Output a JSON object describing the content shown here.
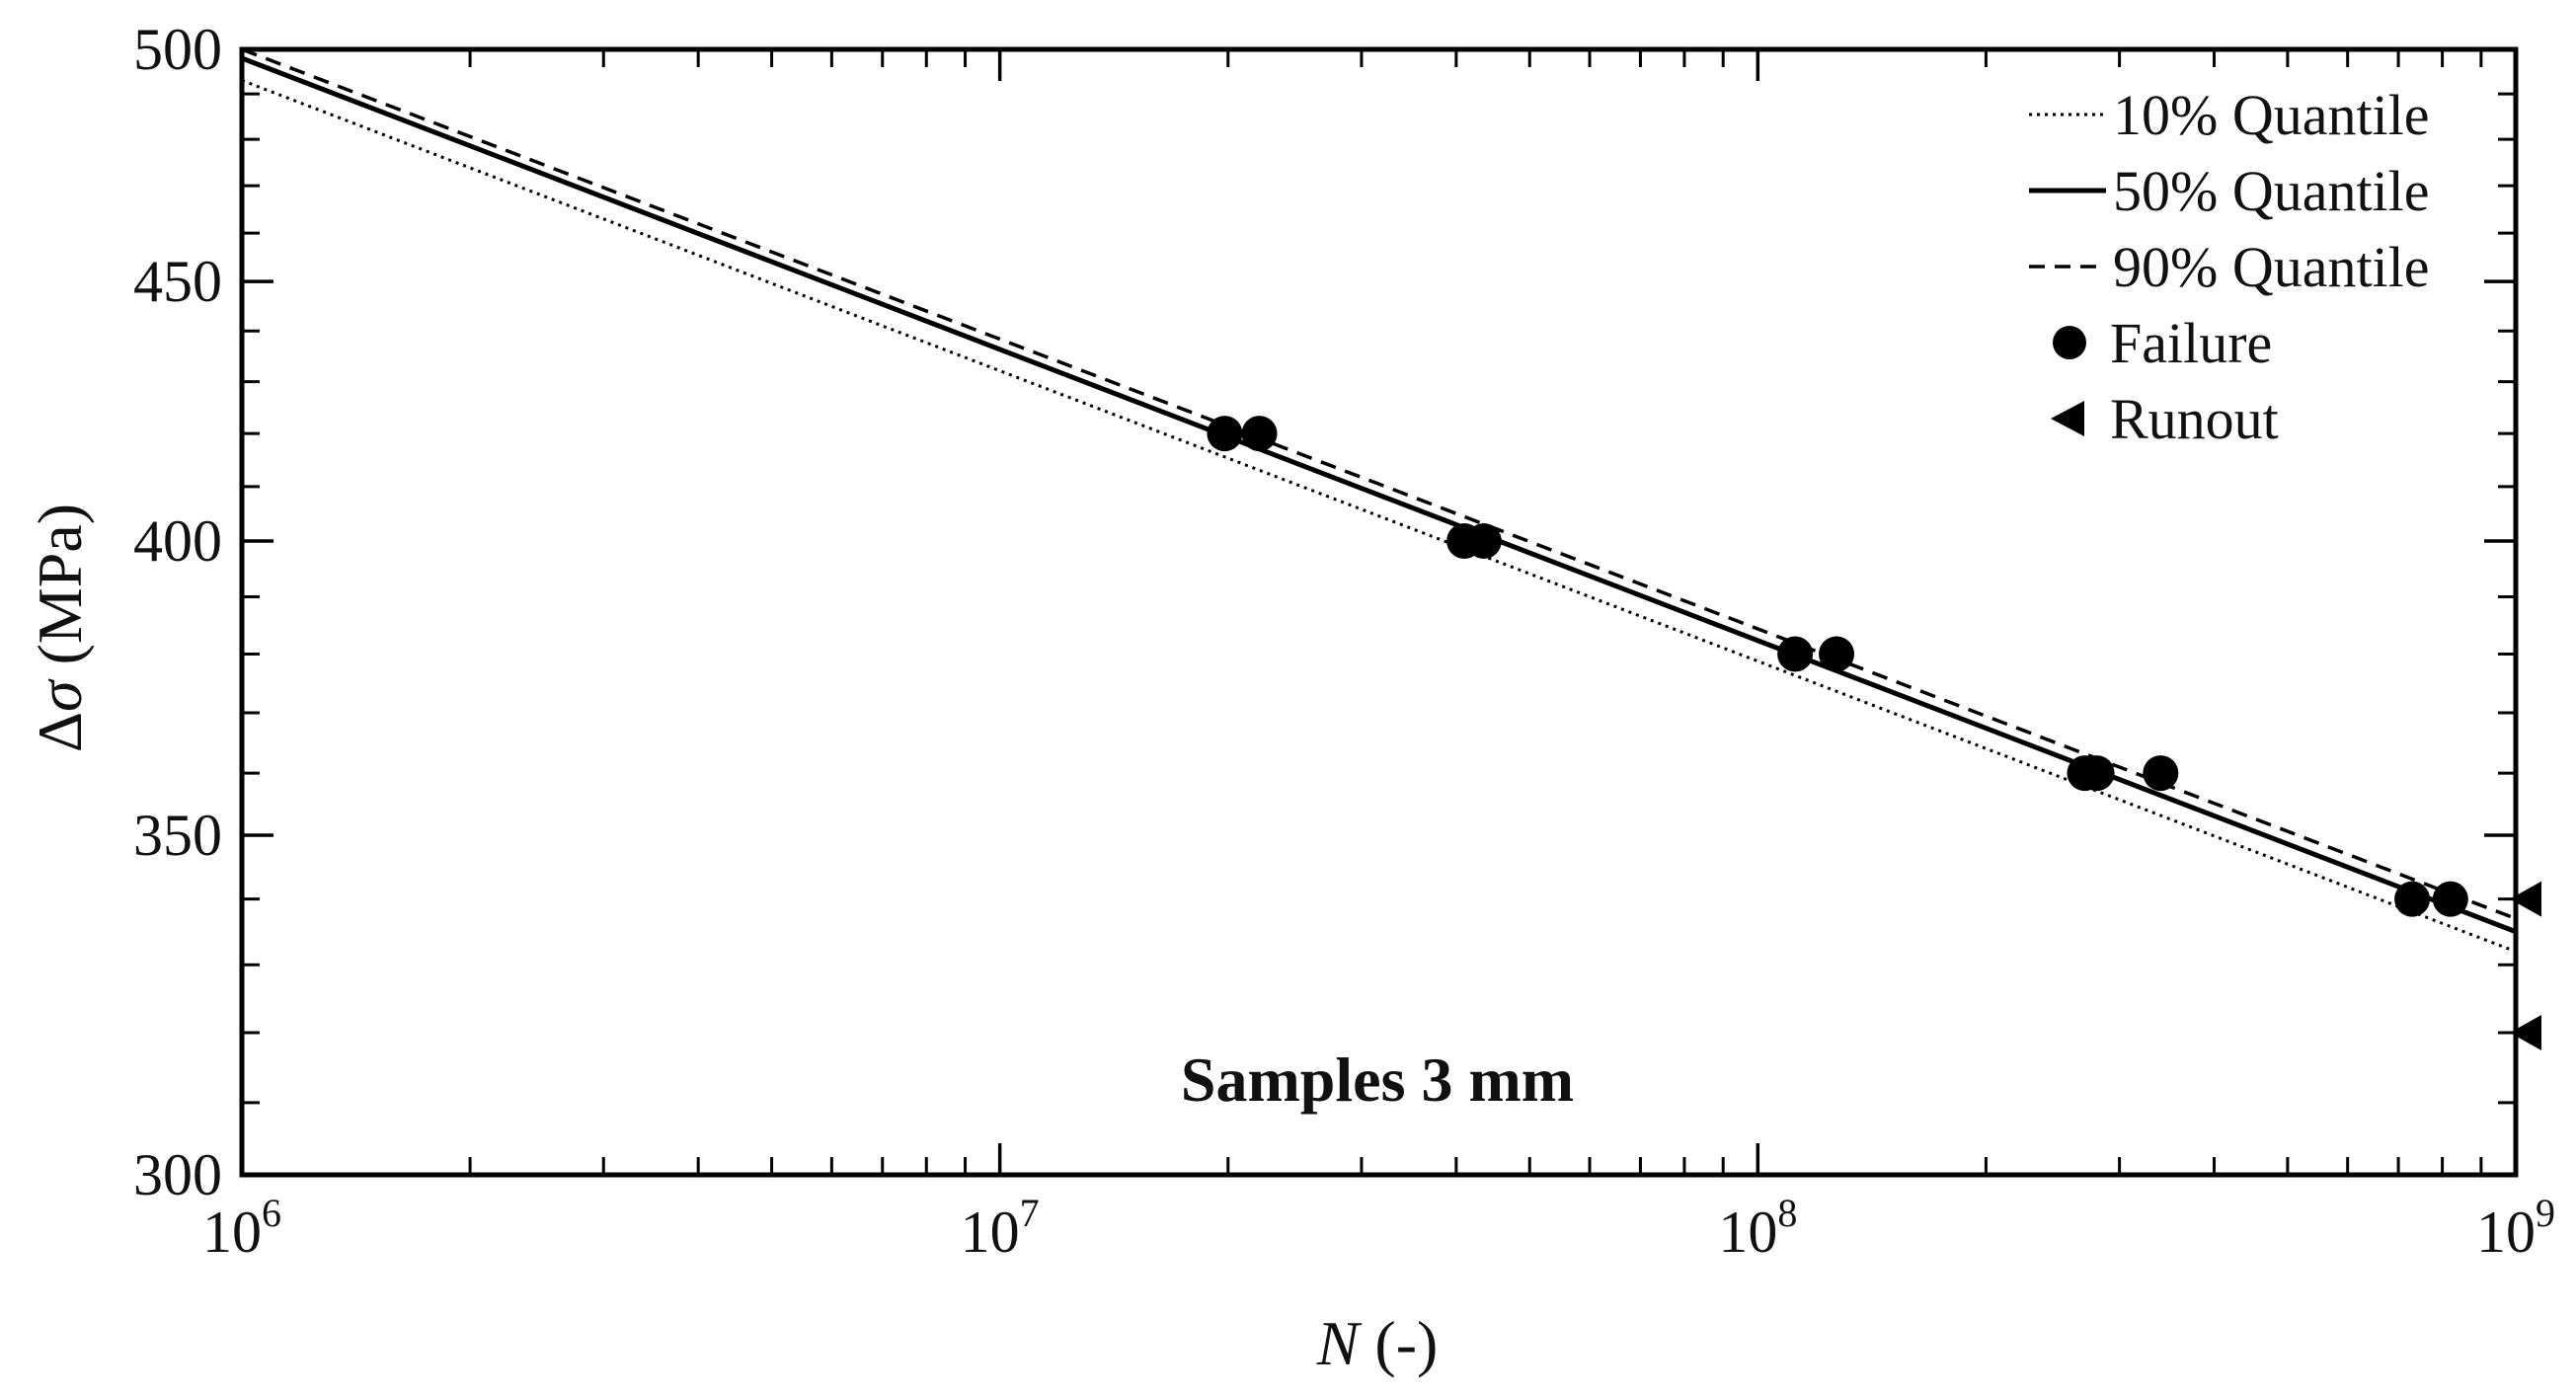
{
  "chart_data": {
    "type": "scatter",
    "xlabel": {
      "var": "N",
      "rest": " (-)"
    },
    "ylabel": {
      "delta": "Δ",
      "var": "σ",
      "rest": " (MPa)"
    },
    "x_scale": "log",
    "y_scale": "log",
    "xlim": [
      1000000,
      1000000000
    ],
    "ylim": [
      300,
      500
    ],
    "x_ticks": [
      {
        "value": 1000000,
        "base": "10",
        "exp": "6"
      },
      {
        "value": 10000000,
        "base": "10",
        "exp": "7"
      },
      {
        "value": 100000000,
        "base": "10",
        "exp": "8"
      },
      {
        "value": 1000000000,
        "base": "10",
        "exp": "9"
      }
    ],
    "y_ticks": [
      {
        "value": 300,
        "label": "300"
      },
      {
        "value": 350,
        "label": "350"
      },
      {
        "value": 400,
        "label": "400"
      },
      {
        "value": 450,
        "label": "450"
      },
      {
        "value": 500,
        "label": "500"
      }
    ],
    "grid": false,
    "legend_position": "top-right",
    "annotation": "Samples 3 mm",
    "series": [
      {
        "name": "10% Quantile",
        "kind": "line",
        "style": "dotted",
        "x": [
          1000000,
          1000000000
        ],
        "y": [
          493,
          332
        ]
      },
      {
        "name": "50% Quantile",
        "kind": "line",
        "style": "solid",
        "x": [
          1000000,
          1000000000
        ],
        "y": [
          498,
          335
        ]
      },
      {
        "name": "90% Quantile",
        "kind": "line",
        "style": "dashed",
        "x": [
          1000000,
          1000000000
        ],
        "y": [
          500,
          337
        ]
      },
      {
        "name": "Failure",
        "kind": "marker",
        "marker": "circle",
        "x": [
          19800000,
          22000000,
          41000000,
          43500000,
          112000000,
          127000000,
          270000000,
          280000000,
          340000000,
          730000000,
          820000000
        ],
        "y": [
          420,
          420,
          400,
          400,
          380,
          380,
          360,
          360,
          360,
          340,
          340
        ]
      },
      {
        "name": "Runout",
        "kind": "marker",
        "marker": "triangle-left",
        "x": [
          1000000000,
          1000000000
        ],
        "y": [
          340,
          320
        ]
      }
    ]
  },
  "colors": {
    "ink": "#000000",
    "background": "#ffffff"
  }
}
